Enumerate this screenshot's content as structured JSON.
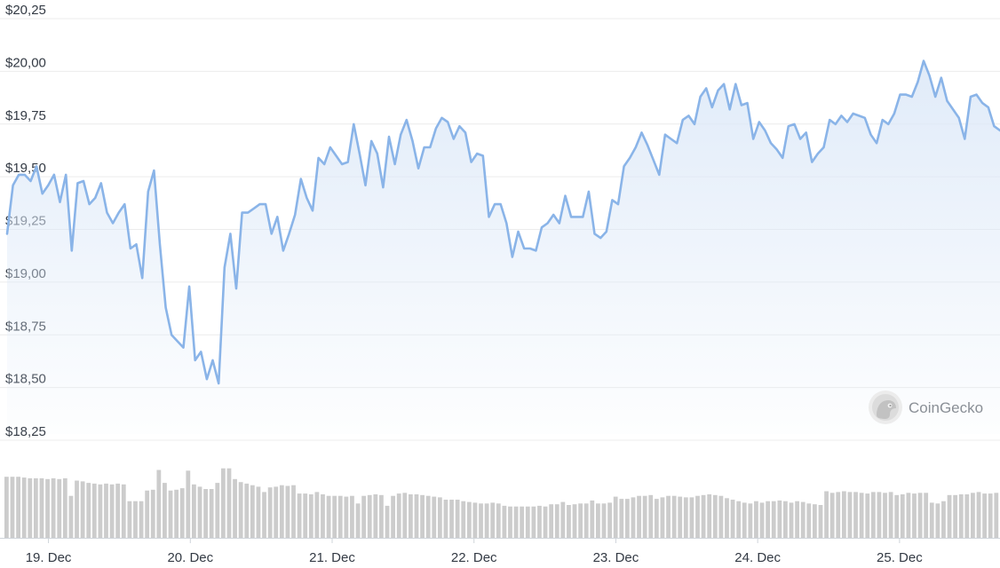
{
  "chart_data": {
    "type": "line",
    "currency_prefix": "$",
    "ylim": [
      18.25,
      20.25
    ],
    "y_ticks": [
      {
        "value": 20.25,
        "label": "$20,25"
      },
      {
        "value": 20.0,
        "label": "$20,00"
      },
      {
        "value": 19.75,
        "label": "$19,75"
      },
      {
        "value": 19.5,
        "label": "$19,50"
      },
      {
        "value": 19.25,
        "label": "$19,25"
      },
      {
        "value": 19.0,
        "label": "$19,00"
      },
      {
        "value": 18.75,
        "label": "$18,75"
      },
      {
        "value": 18.5,
        "label": "$18,50"
      },
      {
        "value": 18.25,
        "label": "$18,25"
      }
    ],
    "x_range": [
      "2021-12-18T17:00",
      "2021-12-25T17:00"
    ],
    "x_ticks": [
      {
        "value": "2021-12-19",
        "label": "19. Dec"
      },
      {
        "value": "2021-12-20",
        "label": "20. Dec"
      },
      {
        "value": "2021-12-21",
        "label": "21. Dec"
      },
      {
        "value": "2021-12-22",
        "label": "22. Dec"
      },
      {
        "value": "2021-12-23",
        "label": "23. Dec"
      },
      {
        "value": "2021-12-24",
        "label": "24. Dec"
      },
      {
        "value": "2021-12-25",
        "label": "25. Dec"
      }
    ],
    "grid": true,
    "colors": {
      "line": "#8ab4e8",
      "fill_top": "#dde9f8",
      "volume": "#cccccc",
      "grid": "#ececec"
    },
    "series": [
      {
        "values": [
          19.2,
          19.43,
          19.48,
          19.48,
          19.45,
          19.52,
          19.39,
          19.43,
          19.48,
          19.35,
          19.48,
          19.12,
          19.44,
          19.45,
          19.34,
          19.37,
          19.44,
          19.3,
          19.25,
          19.3,
          19.34,
          19.13,
          19.15,
          18.99,
          19.4,
          19.5,
          19.15,
          18.85,
          18.72,
          18.69,
          18.66,
          18.95,
          18.6,
          18.64,
          18.51,
          18.6,
          18.49,
          19.04,
          19.2,
          18.94,
          19.3,
          19.3,
          19.32,
          19.34,
          19.34,
          19.2,
          19.28,
          19.12,
          19.2,
          19.29,
          19.46,
          19.37,
          19.31,
          19.56,
          19.53,
          19.61,
          19.57,
          19.53,
          19.54,
          19.72,
          19.58,
          19.43,
          19.64,
          19.58,
          19.42,
          19.66,
          19.53,
          19.67,
          19.74,
          19.64,
          19.51,
          19.61,
          19.61,
          19.7,
          19.75,
          19.73,
          19.65,
          19.71,
          19.68,
          19.54,
          19.58,
          19.57,
          19.28,
          19.34,
          19.34,
          19.25,
          19.09,
          19.21,
          19.13,
          19.13,
          19.12,
          19.23,
          19.25,
          19.29,
          19.25,
          19.38,
          19.28,
          19.28,
          19.28,
          19.4,
          19.2,
          19.18,
          19.21,
          19.36,
          19.34,
          19.52,
          19.56,
          19.61,
          19.68,
          19.62,
          19.55,
          19.48,
          19.67,
          19.65,
          19.63,
          19.74,
          19.76,
          19.72,
          19.85,
          19.89,
          19.8,
          19.88,
          19.91,
          19.79,
          19.91,
          19.81,
          19.82,
          19.65,
          19.73,
          19.69,
          19.63,
          19.6,
          19.56,
          19.71,
          19.72,
          19.65,
          19.68,
          19.54,
          19.58,
          19.61,
          19.74,
          19.72,
          19.76,
          19.73,
          19.77,
          19.76,
          19.75,
          19.67,
          19.63,
          19.74,
          19.72,
          19.77,
          19.86,
          19.86,
          19.85,
          19.92,
          20.02,
          19.95,
          19.85,
          19.94,
          19.83,
          19.79,
          19.75,
          19.65,
          19.85,
          19.86,
          19.82,
          19.8,
          19.71,
          19.69
        ]
      }
    ],
    "volume": {
      "values": [
        0.8,
        0.8,
        0.8,
        0.79,
        0.78,
        0.78,
        0.78,
        0.77,
        0.78,
        0.77,
        0.78,
        0.55,
        0.75,
        0.74,
        0.72,
        0.71,
        0.7,
        0.71,
        0.7,
        0.71,
        0.7,
        0.48,
        0.48,
        0.48,
        0.62,
        0.63,
        0.89,
        0.72,
        0.62,
        0.63,
        0.65,
        0.88,
        0.7,
        0.67,
        0.64,
        0.64,
        0.72,
        0.91,
        0.91,
        0.77,
        0.73,
        0.71,
        0.69,
        0.67,
        0.6,
        0.66,
        0.67,
        0.69,
        0.68,
        0.69,
        0.58,
        0.58,
        0.57,
        0.6,
        0.57,
        0.55,
        0.55,
        0.55,
        0.54,
        0.55,
        0.45,
        0.55,
        0.56,
        0.57,
        0.56,
        0.42,
        0.55,
        0.58,
        0.59,
        0.57,
        0.57,
        0.56,
        0.55,
        0.54,
        0.53,
        0.5,
        0.5,
        0.5,
        0.48,
        0.47,
        0.46,
        0.45,
        0.45,
        0.46,
        0.45,
        0.42,
        0.41,
        0.41,
        0.41,
        0.41,
        0.41,
        0.42,
        0.41,
        0.44,
        0.44,
        0.47,
        0.43,
        0.44,
        0.45,
        0.45,
        0.49,
        0.45,
        0.45,
        0.46,
        0.54,
        0.51,
        0.51,
        0.53,
        0.55,
        0.55,
        0.56,
        0.51,
        0.53,
        0.55,
        0.55,
        0.54,
        0.53,
        0.53,
        0.55,
        0.56,
        0.57,
        0.56,
        0.55,
        0.52,
        0.5,
        0.48,
        0.46,
        0.45,
        0.48,
        0.46,
        0.48,
        0.48,
        0.49,
        0.48,
        0.46,
        0.48,
        0.47,
        0.45,
        0.44,
        0.43,
        0.61,
        0.59,
        0.6,
        0.61,
        0.6,
        0.6,
        0.59,
        0.58,
        0.6,
        0.6,
        0.59,
        0.6,
        0.56,
        0.57,
        0.59,
        0.58,
        0.59,
        0.59,
        0.46,
        0.45,
        0.48,
        0.56,
        0.56,
        0.57,
        0.57,
        0.59,
        0.6,
        0.58,
        0.58,
        0.59
      ]
    }
  },
  "watermark": {
    "text": "CoinGecko",
    "icon": "gecko-logo-icon"
  }
}
